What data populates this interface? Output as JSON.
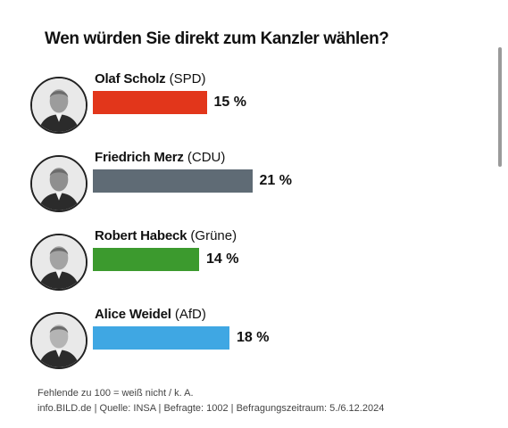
{
  "chart_data": {
    "type": "bar",
    "title": "Wen würden Sie direkt zum Kanzler wählen?",
    "unit": "%",
    "categories": [
      "Olaf Scholz",
      "Friedrich Merz",
      "Robert Habeck",
      "Alice Weidel"
    ],
    "parties": [
      "(SPD)",
      "(CDU)",
      "(Grüne)",
      "(AfD)"
    ],
    "values": [
      15,
      21,
      14,
      18
    ],
    "value_labels": [
      "15 %",
      "21 %",
      "14 %",
      "18 %"
    ],
    "colors": [
      "#e2361b",
      "#5f6b75",
      "#3c9a2e",
      "#3fa7e3"
    ],
    "orientation": "horizontal",
    "grid": false,
    "legend": "none"
  },
  "footnotes": {
    "line1": "Fehlende zu 100 = weiß nicht / k. A.",
    "line2": "info.BILD.de | Quelle: INSA | Befragte: 1002 | Befragungszeitraum: 5./6.12.2024"
  },
  "icons": [
    "portrait-icon"
  ]
}
